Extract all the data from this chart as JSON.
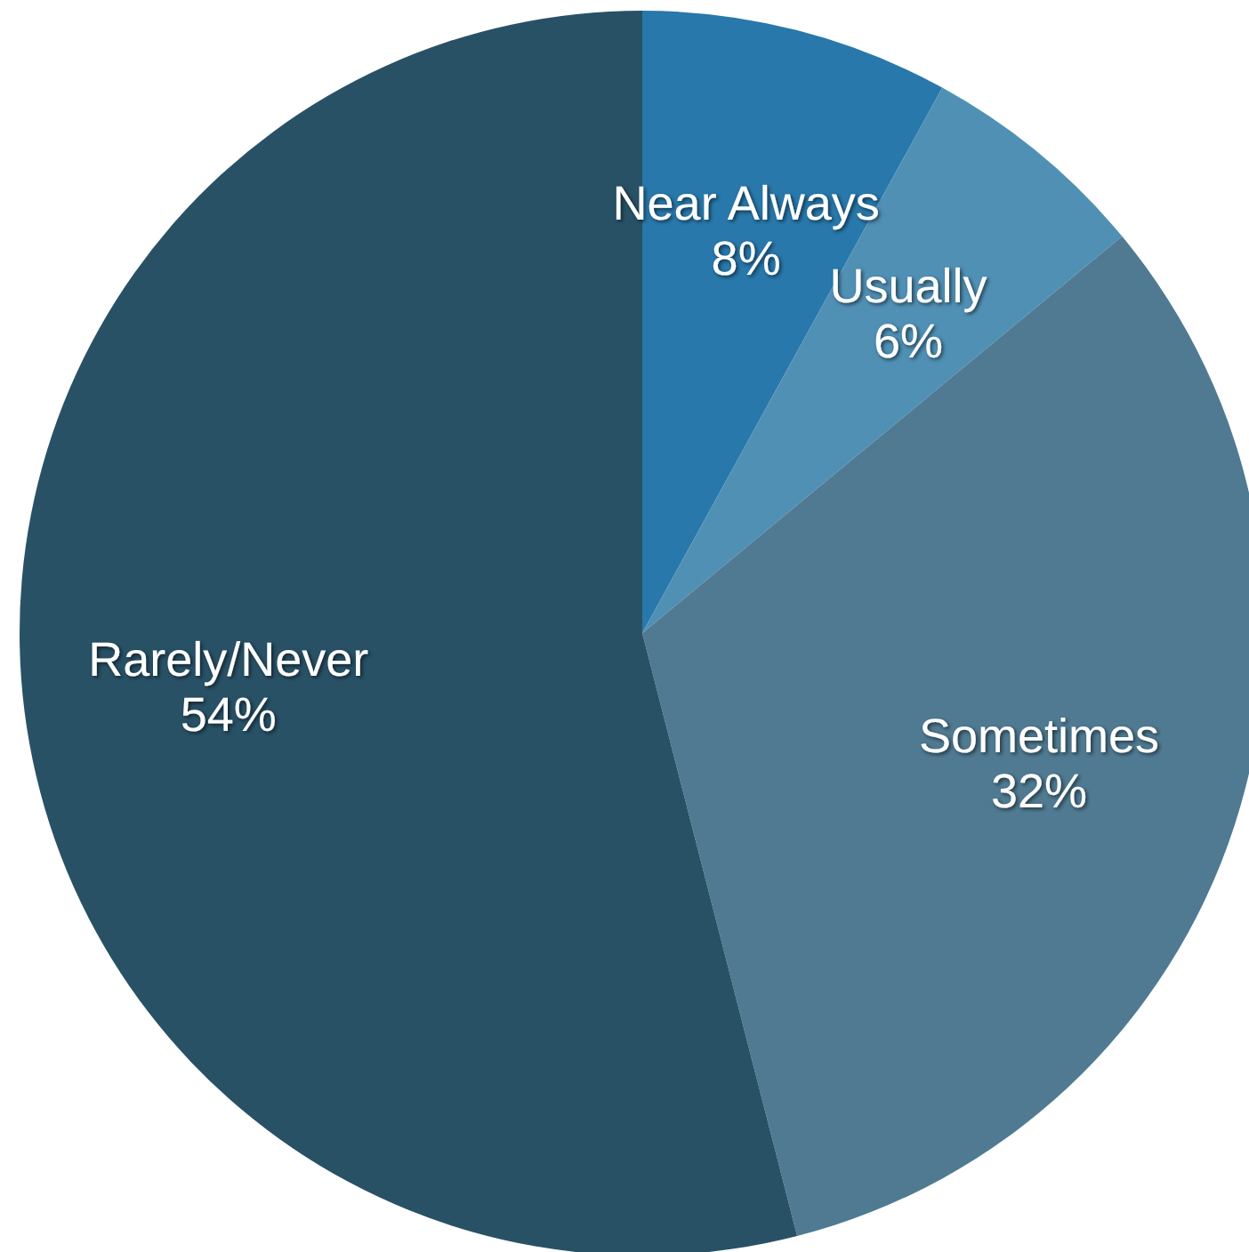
{
  "chart_data": {
    "type": "pie",
    "categories": [
      "Near Always",
      "Usually",
      "Sometimes",
      "Rarely/Never"
    ],
    "values": [
      8,
      6,
      32,
      54
    ],
    "value_labels": [
      "8%",
      "6%",
      "32%",
      "54%"
    ],
    "colors": [
      "#2878ab",
      "#5090b5",
      "#4f7a92",
      "#285166"
    ]
  }
}
